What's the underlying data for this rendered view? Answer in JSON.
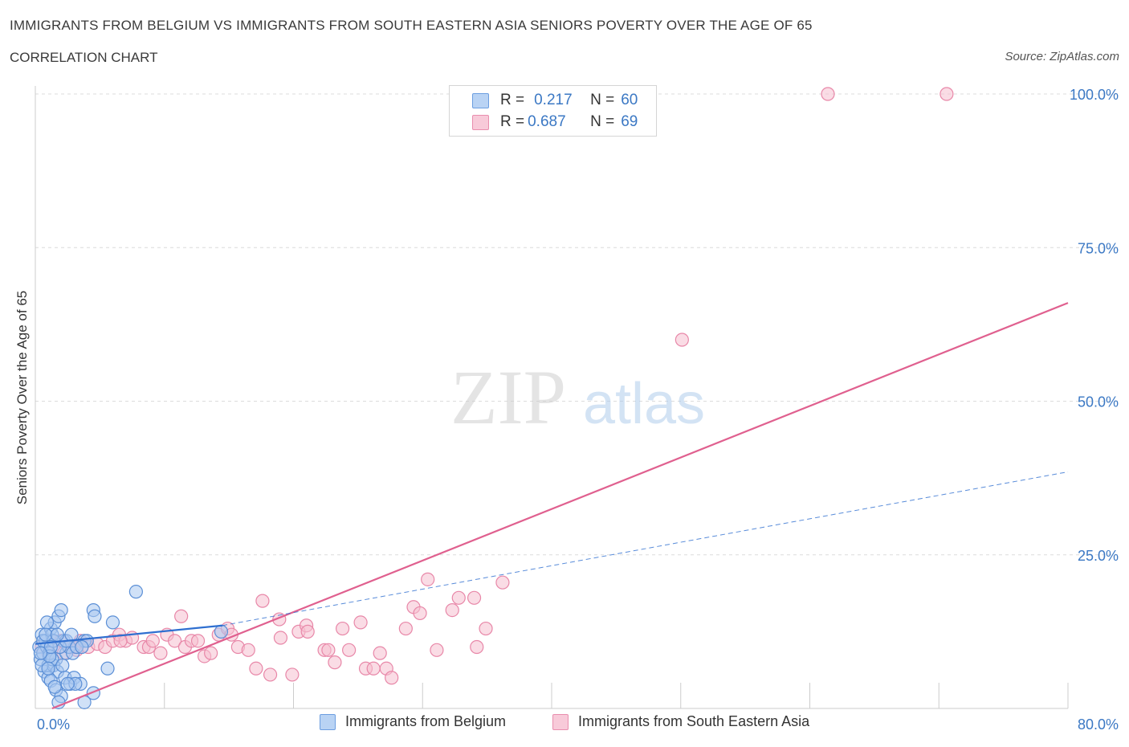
{
  "header": {
    "title": "IMMIGRANTS FROM BELGIUM VS IMMIGRANTS FROM SOUTH EASTERN ASIA SENIORS POVERTY OVER THE AGE OF 65",
    "subtitle": "CORRELATION CHART",
    "source": "Source: ZipAtlas.com"
  },
  "watermark": {
    "zip": "ZIP",
    "atlas": "atlas"
  },
  "colors": {
    "belgium_fill": "#a9c8f0",
    "belgium_stroke": "#5b8fd6",
    "belgium_line": "#2f6fd0",
    "sea_fill": "#f5bfd0",
    "sea_stroke": "#e887a8",
    "sea_line": "#e0608f",
    "axis_label": "#3b78c4"
  },
  "legend_top": {
    "rows": [
      {
        "r_label": "R =",
        "r_value": "0.217",
        "n_label": "N =",
        "n_value": "60"
      },
      {
        "r_label": "R =",
        "r_value": "0.687",
        "n_label": "N =",
        "n_value": "69"
      }
    ]
  },
  "legend_bottom": {
    "belgium": "Immigrants from Belgium",
    "sea": "Immigrants from South Eastern Asia"
  },
  "chart_data": {
    "type": "scatter",
    "title": "IMMIGRANTS FROM BELGIUM VS IMMIGRANTS FROM SOUTH EASTERN ASIA SENIORS POVERTY OVER THE AGE OF 65",
    "ylabel": "Seniors Poverty Over the Age of 65",
    "xlim": [
      0,
      80
    ],
    "ylim": [
      0,
      100
    ],
    "x_tick_labels": [
      "0.0%",
      "80.0%"
    ],
    "y_ticks": [
      25,
      50,
      75,
      100
    ],
    "y_tick_labels": [
      "25.0%",
      "50.0%",
      "75.0%",
      "100.0%"
    ],
    "grid": true,
    "series": [
      {
        "name": "Immigrants from Belgium",
        "points": [
          [
            0.3,
            10
          ],
          [
            0.5,
            12
          ],
          [
            0.4,
            8
          ],
          [
            0.6,
            9
          ],
          [
            0.8,
            11
          ],
          [
            1.0,
            7
          ],
          [
            1.2,
            13
          ],
          [
            0.7,
            6
          ],
          [
            0.9,
            10
          ],
          [
            1.1,
            9
          ],
          [
            1.5,
            14
          ],
          [
            1.3,
            12
          ],
          [
            1.6,
            8
          ],
          [
            1.8,
            15
          ],
          [
            2.0,
            16
          ],
          [
            1.4,
            7
          ],
          [
            1.7,
            6
          ],
          [
            2.2,
            11
          ],
          [
            2.4,
            9
          ],
          [
            2.6,
            10
          ],
          [
            1.0,
            5
          ],
          [
            1.2,
            4.5
          ],
          [
            1.6,
            3
          ],
          [
            2.0,
            2
          ],
          [
            2.3,
            5
          ],
          [
            2.7,
            4
          ],
          [
            3.0,
            5
          ],
          [
            3.5,
            4
          ],
          [
            3.8,
            11
          ],
          [
            4.0,
            11
          ],
          [
            4.5,
            16
          ],
          [
            4.6,
            15
          ],
          [
            5.6,
            6.5
          ],
          [
            6.0,
            14
          ],
          [
            7.8,
            19
          ],
          [
            3.8,
            1
          ],
          [
            4.5,
            2.5
          ],
          [
            0.9,
            14
          ],
          [
            1.3,
            8
          ],
          [
            0.5,
            7
          ],
          [
            1.1,
            8.5
          ],
          [
            1.9,
            10
          ],
          [
            0.6,
            11
          ],
          [
            1.4,
            11
          ],
          [
            2.1,
            7
          ],
          [
            2.4,
            11
          ],
          [
            2.9,
            9
          ],
          [
            3.2,
            10
          ],
          [
            3.6,
            10
          ],
          [
            0.8,
            12
          ],
          [
            1.5,
            3.5
          ],
          [
            1.2,
            10
          ],
          [
            2.8,
            12
          ],
          [
            0.4,
            9
          ],
          [
            1.0,
            6.5
          ],
          [
            1.7,
            12
          ],
          [
            3.1,
            4
          ],
          [
            14.4,
            12.5
          ],
          [
            1.8,
            1
          ],
          [
            2.5,
            4
          ]
        ]
      },
      {
        "name": "Immigrants from South Eastern Asia",
        "points": [
          [
            0.5,
            10
          ],
          [
            1.0,
            9
          ],
          [
            1.3,
            11
          ],
          [
            1.8,
            10
          ],
          [
            2.2,
            9
          ],
          [
            2.7,
            10
          ],
          [
            3.2,
            9.5
          ],
          [
            3.5,
            11
          ],
          [
            4.1,
            10
          ],
          [
            4.8,
            10.5
          ],
          [
            5.4,
            10
          ],
          [
            6.0,
            11
          ],
          [
            6.5,
            12
          ],
          [
            7.0,
            11
          ],
          [
            7.5,
            11.5
          ],
          [
            8.4,
            10
          ],
          [
            8.8,
            10
          ],
          [
            9.1,
            11
          ],
          [
            9.7,
            9
          ],
          [
            10.2,
            12
          ],
          [
            10.8,
            11
          ],
          [
            11.3,
            15
          ],
          [
            11.6,
            10
          ],
          [
            12.1,
            11
          ],
          [
            12.6,
            11
          ],
          [
            13.1,
            8.5
          ],
          [
            13.6,
            9
          ],
          [
            14.2,
            12
          ],
          [
            14.9,
            13
          ],
          [
            15.2,
            12
          ],
          [
            15.7,
            10
          ],
          [
            16.5,
            9.5
          ],
          [
            17.1,
            6.5
          ],
          [
            17.6,
            17.5
          ],
          [
            18.2,
            5.5
          ],
          [
            18.9,
            14.5
          ],
          [
            19.0,
            11.5
          ],
          [
            19.9,
            5.5
          ],
          [
            20.4,
            12.5
          ],
          [
            21.0,
            13.5
          ],
          [
            21.1,
            12.5
          ],
          [
            22.4,
            9.5
          ],
          [
            22.7,
            9.5
          ],
          [
            23.2,
            7.5
          ],
          [
            23.8,
            13
          ],
          [
            24.3,
            9.5
          ],
          [
            25.2,
            14
          ],
          [
            25.6,
            6.5
          ],
          [
            26.2,
            6.5
          ],
          [
            26.7,
            9
          ],
          [
            27.2,
            6.5
          ],
          [
            27.6,
            5
          ],
          [
            28.7,
            13
          ],
          [
            29.3,
            16.5
          ],
          [
            29.8,
            15.5
          ],
          [
            30.4,
            21
          ],
          [
            31.1,
            9.5
          ],
          [
            32.3,
            16
          ],
          [
            32.8,
            18
          ],
          [
            34.0,
            18
          ],
          [
            34.2,
            10
          ],
          [
            34.9,
            13
          ],
          [
            36.2,
            20.5
          ],
          [
            50.1,
            60
          ],
          [
            61.4,
            100
          ],
          [
            70.6,
            100
          ],
          [
            2.0,
            11
          ],
          [
            3.0,
            10
          ],
          [
            6.6,
            11
          ]
        ]
      }
    ],
    "trendlines": [
      {
        "series": "Immigrants from Belgium",
        "solid": [
          [
            0,
            10.5
          ],
          [
            14.5,
            13.5
          ]
        ],
        "dashed": [
          [
            14.5,
            13.5
          ],
          [
            80,
            38.5
          ]
        ]
      },
      {
        "series": "Immigrants from South Eastern Asia",
        "solid": [
          [
            1.3,
            0
          ],
          [
            80,
            66
          ]
        ]
      }
    ]
  }
}
